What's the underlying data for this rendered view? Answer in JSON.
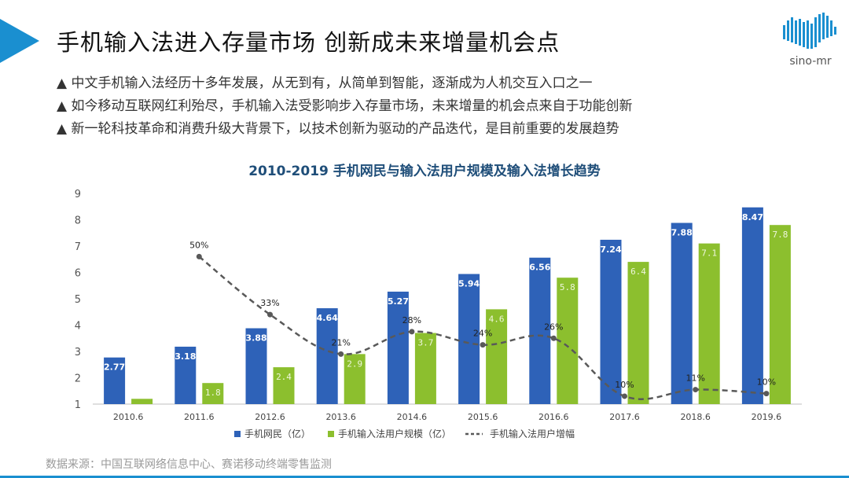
{
  "slide": {
    "title": "手机输入法进入存量市场  创新成未来增量机会点",
    "logo_text": "sino-mr",
    "bullets": [
      "▲ 中文手机输入法经历十多年发展，从无到有，从简单到智能，逐渐成为人机交互入口之一",
      "▲ 如今移动互联网红利殆尽，手机输入法受影响步入存量市场，未来增量的机会点来自于功能创新",
      "▲ 新一轮科技革命和消费升级大背景下，以技术创新为驱动的产品迭代，是目前重要的发展趋势"
    ],
    "source": "数据来源：中国互联网络信息中心、赛诺移动终端零售监测",
    "accent_color": "#1a8fd0"
  },
  "chart_data": {
    "type": "bar",
    "title": "2010-2019 手机网民与输入法用户规模及输入法增长趋势",
    "categories": [
      "2010.6",
      "2011.6",
      "2012.6",
      "2013.6",
      "2014.6",
      "2015.6",
      "2016.6",
      "2017.6",
      "2018.6",
      "2019.6"
    ],
    "ylim": [
      1,
      9
    ],
    "yticks": [
      1,
      2,
      3,
      4,
      5,
      6,
      7,
      8,
      9
    ],
    "grid": false,
    "legend_position": "bottom",
    "series": [
      {
        "name": "手机网民（亿）",
        "type": "bar",
        "color": "#2e62b8",
        "values": [
          2.77,
          3.18,
          3.88,
          4.64,
          5.27,
          5.94,
          6.56,
          7.24,
          7.88,
          8.47
        ],
        "labels": [
          "2.77",
          "3.18",
          "3.88",
          "4.64",
          "5.27",
          "5.94",
          "6.56",
          "7.24",
          "7.88",
          "8.47"
        ]
      },
      {
        "name": "手机输入法用户规模（亿）",
        "type": "bar",
        "color": "#8cbf2e",
        "values": [
          1.2,
          1.8,
          2.4,
          2.9,
          3.7,
          4.6,
          5.8,
          6.4,
          7.1,
          7.8
        ],
        "labels": [
          "",
          "1.8",
          "2.4",
          "2.9",
          "3.7",
          "4.6",
          "5.8",
          "6.4",
          "7.1",
          "7.8"
        ]
      },
      {
        "name": "手机输入法用户增幅",
        "type": "line",
        "style": "dashed",
        "color": "#595959",
        "values": [
          null,
          6.6,
          4.4,
          2.9,
          3.75,
          3.25,
          3.5,
          1.3,
          1.55,
          1.4
        ],
        "labels": [
          "",
          "50%",
          "33%",
          "21%",
          "28%",
          "24%",
          "26%",
          "10%",
          "11%",
          "10%"
        ]
      }
    ]
  }
}
